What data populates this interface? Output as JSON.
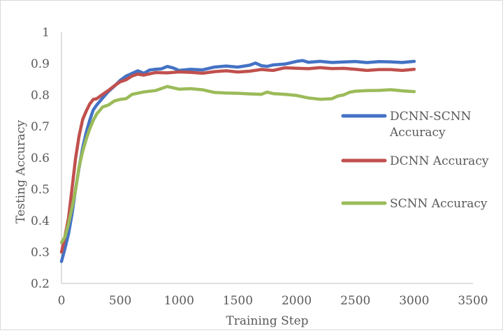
{
  "chart_data": {
    "type": "line",
    "xlabel": "Training Step",
    "ylabel": "Testing Accuracy",
    "xlim": [
      0,
      3500
    ],
    "ylim": [
      0.2,
      1
    ],
    "x_ticks": [
      "0",
      "500",
      "1000",
      "1500",
      "2000",
      "2500",
      "3000",
      "3500"
    ],
    "y_ticks": [
      "0.2",
      "0.3",
      "0.4",
      "0.5",
      "0.6",
      "0.7",
      "0.8",
      "0.9",
      "1"
    ],
    "grid": false,
    "legend_position": "right",
    "series": [
      {
        "name": "DCNN-SCNN Accuracy",
        "legend_lines": [
          "DCNN-SCNN",
          "Accuracy"
        ],
        "color": "#4472c4",
        "x": [
          0,
          30,
          60,
          90,
          120,
          150,
          180,
          210,
          240,
          270,
          300,
          350,
          400,
          450,
          500,
          550,
          600,
          650,
          700,
          750,
          800,
          850,
          900,
          950,
          1000,
          1100,
          1200,
          1300,
          1400,
          1500,
          1600,
          1650,
          1700,
          1750,
          1800,
          1900,
          2000,
          2050,
          2100,
          2200,
          2300,
          2400,
          2500,
          2600,
          2700,
          2800,
          2900,
          3000
        ],
        "y": [
          0.27,
          0.31,
          0.36,
          0.42,
          0.5,
          0.57,
          0.63,
          0.68,
          0.72,
          0.75,
          0.77,
          0.79,
          0.81,
          0.83,
          0.845,
          0.86,
          0.87,
          0.875,
          0.87,
          0.88,
          0.88,
          0.885,
          0.89,
          0.885,
          0.88,
          0.88,
          0.88,
          0.89,
          0.89,
          0.89,
          0.895,
          0.9,
          0.895,
          0.89,
          0.895,
          0.9,
          0.905,
          0.91,
          0.905,
          0.905,
          0.905,
          0.905,
          0.905,
          0.905,
          0.905,
          0.905,
          0.905,
          0.905
        ]
      },
      {
        "name": "DCNN Accuracy",
        "legend_lines": [
          "DCNN Accuracy"
        ],
        "color": "#c0504d",
        "x": [
          0,
          30,
          60,
          90,
          120,
          150,
          180,
          210,
          240,
          270,
          300,
          350,
          400,
          450,
          500,
          550,
          600,
          650,
          700,
          800,
          900,
          1000,
          1100,
          1200,
          1300,
          1400,
          1500,
          1600,
          1700,
          1800,
          1900,
          2000,
          2100,
          2200,
          2300,
          2400,
          2500,
          2600,
          2700,
          2800,
          2900,
          3000
        ],
        "y": [
          0.3,
          0.35,
          0.41,
          0.5,
          0.6,
          0.67,
          0.72,
          0.75,
          0.77,
          0.785,
          0.79,
          0.8,
          0.815,
          0.83,
          0.84,
          0.85,
          0.86,
          0.865,
          0.865,
          0.87,
          0.87,
          0.875,
          0.87,
          0.87,
          0.875,
          0.875,
          0.875,
          0.875,
          0.88,
          0.88,
          0.885,
          0.885,
          0.885,
          0.885,
          0.885,
          0.885,
          0.88,
          0.88,
          0.88,
          0.88,
          0.88,
          0.88
        ]
      },
      {
        "name": "SCNN Accuracy",
        "legend_lines": [
          "SCNN Accuracy"
        ],
        "color": "#9bbb59",
        "x": [
          0,
          30,
          60,
          90,
          120,
          150,
          180,
          210,
          240,
          270,
          300,
          350,
          400,
          450,
          500,
          550,
          600,
          700,
          800,
          900,
          1000,
          1100,
          1200,
          1300,
          1400,
          1500,
          1600,
          1700,
          1750,
          1800,
          1900,
          2000,
          2100,
          2200,
          2300,
          2350,
          2400,
          2450,
          2500,
          2600,
          2700,
          2800,
          2900,
          3000
        ],
        "y": [
          0.33,
          0.35,
          0.39,
          0.44,
          0.5,
          0.57,
          0.62,
          0.66,
          0.69,
          0.72,
          0.74,
          0.76,
          0.77,
          0.78,
          0.785,
          0.79,
          0.8,
          0.81,
          0.815,
          0.825,
          0.82,
          0.82,
          0.815,
          0.81,
          0.805,
          0.805,
          0.805,
          0.8,
          0.81,
          0.805,
          0.8,
          0.8,
          0.79,
          0.785,
          0.79,
          0.795,
          0.8,
          0.81,
          0.81,
          0.815,
          0.815,
          0.815,
          0.815,
          0.81
        ]
      }
    ]
  }
}
